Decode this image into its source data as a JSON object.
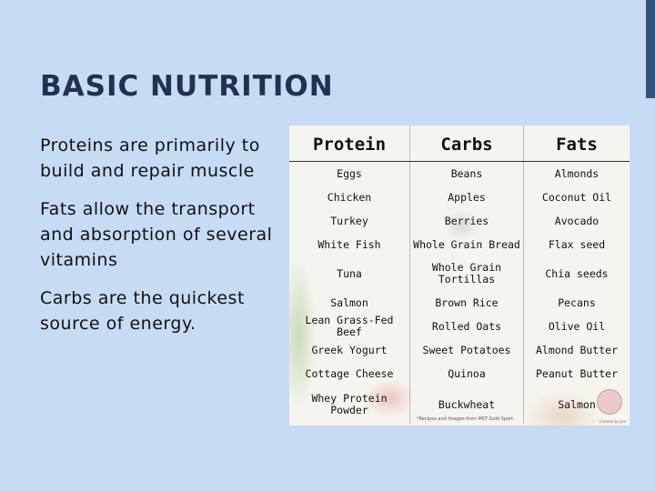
{
  "slide": {
    "title": "BASIC NUTRITION",
    "bullets": [
      "Proteins are primarily to build and repair muscle",
      "Fats allow the transport and absorption of several vitamins",
      "Carbs are the quickest source of energy."
    ]
  },
  "food_table": {
    "headers": [
      "Protein",
      "Carbs",
      "Fats"
    ],
    "rows": [
      [
        "Eggs",
        "Beans",
        "Almonds"
      ],
      [
        "Chicken",
        "Apples",
        "Coconut Oil"
      ],
      [
        "Turkey",
        "Berries",
        "Avocado"
      ],
      [
        "White Fish",
        "Whole Grain Bread",
        "Flax seed"
      ],
      [
        "Tuna",
        "Whole Grain Tortillas",
        "Chia seeds"
      ],
      [
        "Salmon",
        "Brown Rice",
        "Pecans"
      ],
      [
        "Lean Grass-Fed Beef",
        "Rolled Oats",
        "Olive Oil"
      ],
      [
        "Greek Yogurt",
        "Sweet Potatoes",
        "Almond Butter"
      ],
      [
        "Cottage Cheese",
        "Quinoa",
        "Peanut Butter"
      ],
      [
        "Whey Protein Powder",
        "Buckwheat",
        "Salmon"
      ]
    ],
    "footnote": "*Recipes and Images from MST Gold Sport",
    "avatar_caption": "Created by Joe"
  },
  "colors": {
    "background": "#c6dbf4",
    "title": "#20324f",
    "accent_bar": "#31547f"
  }
}
